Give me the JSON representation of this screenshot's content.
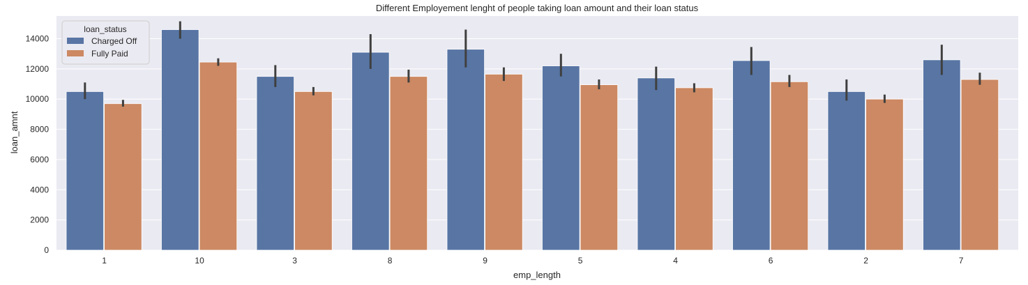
{
  "chart_data": {
    "type": "bar",
    "title": "Different Employement lenght of people taking loan amount and their loan status",
    "xlabel": "emp_length",
    "ylabel": "loan_amnt",
    "ylim": [
      0,
      15500
    ],
    "yticks": [
      0,
      2000,
      4000,
      6000,
      8000,
      10000,
      12000,
      14000
    ],
    "grid": true,
    "legend": {
      "title": "loan_status",
      "placement": "top-left"
    },
    "categories": [
      "1",
      "10",
      "3",
      "8",
      "9",
      "5",
      "4",
      "6",
      "2",
      "7"
    ],
    "series": [
      {
        "name": "Charged Off",
        "color": "#5875a4",
        "values": [
          10500,
          14600,
          11500,
          13100,
          13300,
          12200,
          11400,
          12550,
          10500,
          12600
        ],
        "ci_low": [
          10000,
          14000,
          10800,
          12000,
          12100,
          11500,
          10600,
          11600,
          9900,
          11600
        ],
        "ci_high": [
          11100,
          15150,
          12250,
          14300,
          14600,
          13000,
          12150,
          13450,
          11300,
          13600
        ]
      },
      {
        "name": "Fully Paid",
        "color": "#cc8963",
        "values": [
          9700,
          12450,
          10500,
          11500,
          11650,
          10950,
          10750,
          11150,
          10000,
          11300
        ],
        "ci_low": [
          9500,
          12200,
          10250,
          11100,
          11200,
          10650,
          10450,
          10800,
          9750,
          10950
        ],
        "ci_high": [
          9950,
          12700,
          10800,
          11950,
          12100,
          11300,
          11050,
          11600,
          10300,
          11750
        ]
      }
    ]
  }
}
